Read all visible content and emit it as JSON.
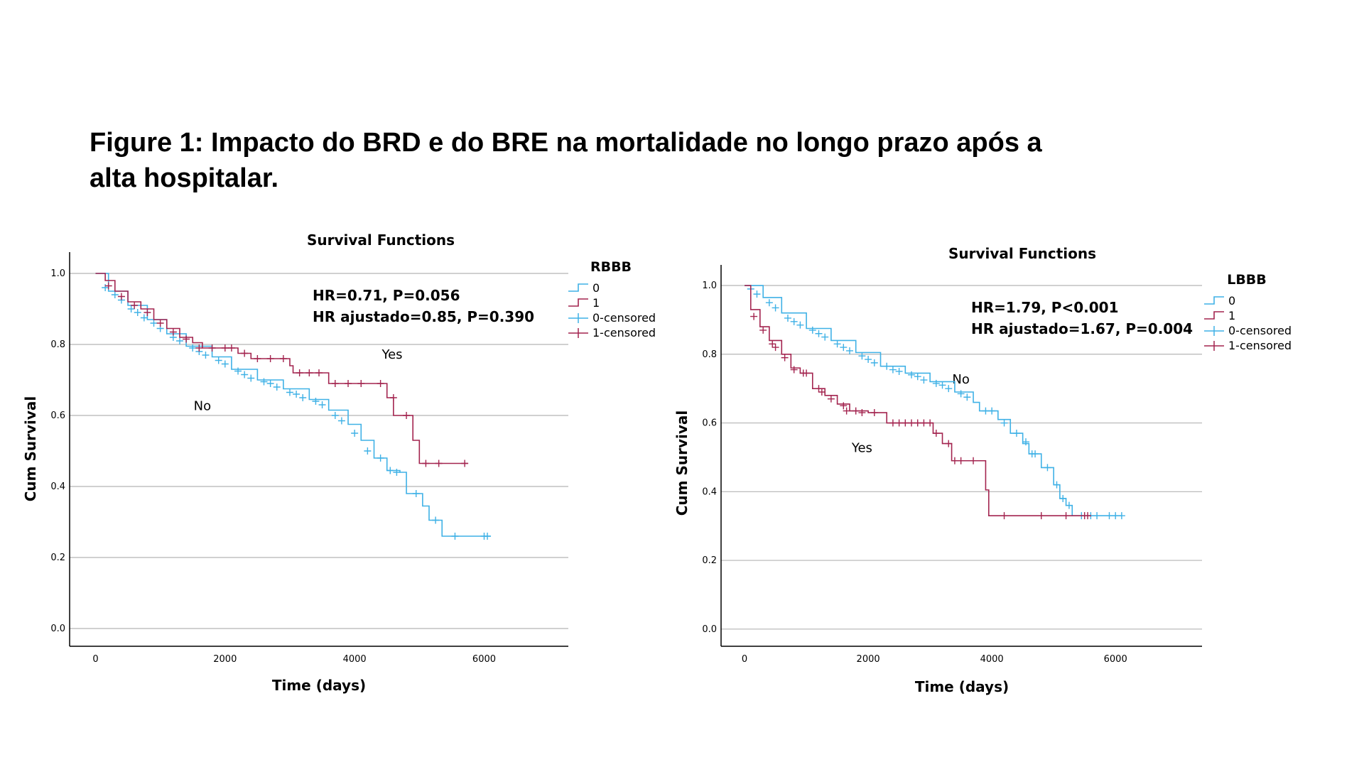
{
  "figure": {
    "title_line1": "Figure 1: Impacto do BRD e do BRE na mortalidade no longo prazo após a",
    "title_line2": "alta hospitalar."
  },
  "colors": {
    "group0": "#3fb1e6",
    "group1": "#a3244f",
    "grid": "#b4b4b4",
    "axis": "#000000"
  },
  "chart_data": [
    {
      "type": "line",
      "title": "Survival Functions",
      "xlabel": "Time (days)",
      "ylabel": "Cum Survival",
      "xlim": [
        -400,
        7300
      ],
      "ylim": [
        -0.05,
        1.06
      ],
      "x_ticks": [
        0,
        2000,
        4000,
        6000
      ],
      "x_tick_labels": [
        "0",
        "2000",
        "4000",
        "6000"
      ],
      "y_ticks": [
        0.0,
        0.2,
        0.4,
        0.6,
        0.8,
        1.0
      ],
      "y_tick_labels": [
        "0.0",
        "0.2",
        "0.4",
        "0.6",
        "0.8",
        "1.0"
      ],
      "grid": "horizontal",
      "legend": {
        "title": "RBBB",
        "position": "right",
        "entries": [
          "0",
          "1",
          "0-censored",
          "1-censored"
        ]
      },
      "annotations": [
        "HR=0.71, P=0.056",
        "HR ajustado=0.85, P=0.390"
      ],
      "group_labels": [
        {
          "text": "No",
          "x": 1650,
          "y": 0.615
        },
        {
          "text": "Yes",
          "x": 4580,
          "y": 0.76
        }
      ],
      "series": [
        {
          "name": "0",
          "points": [
            [
              0,
              1.0
            ],
            [
              200,
              0.95
            ],
            [
              500,
              0.91
            ],
            [
              800,
              0.87
            ],
            [
              1100,
              0.83
            ],
            [
              1400,
              0.795
            ],
            [
              1800,
              0.765
            ],
            [
              2100,
              0.73
            ],
            [
              2500,
              0.7
            ],
            [
              2900,
              0.675
            ],
            [
              3300,
              0.645
            ],
            [
              3600,
              0.615
            ],
            [
              3900,
              0.575
            ],
            [
              4100,
              0.53
            ],
            [
              4300,
              0.48
            ],
            [
              4500,
              0.445
            ],
            [
              4700,
              0.44
            ],
            [
              4800,
              0.38
            ],
            [
              5050,
              0.345
            ],
            [
              5150,
              0.305
            ],
            [
              5350,
              0.26
            ],
            [
              6100,
              0.26
            ]
          ],
          "censored": [
            [
              150,
              0.96
            ],
            [
              300,
              0.94
            ],
            [
              400,
              0.925
            ],
            [
              550,
              0.9
            ],
            [
              650,
              0.89
            ],
            [
              750,
              0.875
            ],
            [
              900,
              0.86
            ],
            [
              1000,
              0.845
            ],
            [
              1200,
              0.82
            ],
            [
              1300,
              0.81
            ],
            [
              1500,
              0.79
            ],
            [
              1600,
              0.78
            ],
            [
              1700,
              0.77
            ],
            [
              1900,
              0.755
            ],
            [
              2000,
              0.745
            ],
            [
              2200,
              0.725
            ],
            [
              2300,
              0.715
            ],
            [
              2400,
              0.705
            ],
            [
              2600,
              0.695
            ],
            [
              2700,
              0.69
            ],
            [
              2800,
              0.68
            ],
            [
              3000,
              0.665
            ],
            [
              3100,
              0.66
            ],
            [
              3200,
              0.65
            ],
            [
              3400,
              0.64
            ],
            [
              3500,
              0.63
            ],
            [
              3700,
              0.6
            ],
            [
              3800,
              0.585
            ],
            [
              4000,
              0.55
            ],
            [
              4200,
              0.5
            ],
            [
              4400,
              0.48
            ],
            [
              4550,
              0.445
            ],
            [
              4650,
              0.44
            ],
            [
              4950,
              0.38
            ],
            [
              5250,
              0.305
            ],
            [
              5550,
              0.26
            ],
            [
              6000,
              0.26
            ],
            [
              6050,
              0.26
            ]
          ]
        },
        {
          "name": "1",
          "points": [
            [
              0,
              1.0
            ],
            [
              150,
              0.98
            ],
            [
              300,
              0.95
            ],
            [
              500,
              0.92
            ],
            [
              700,
              0.9
            ],
            [
              900,
              0.87
            ],
            [
              1100,
              0.845
            ],
            [
              1300,
              0.82
            ],
            [
              1500,
              0.805
            ],
            [
              1650,
              0.79
            ],
            [
              2200,
              0.775
            ],
            [
              2400,
              0.76
            ],
            [
              3000,
              0.74
            ],
            [
              3050,
              0.72
            ],
            [
              3600,
              0.69
            ],
            [
              4500,
              0.65
            ],
            [
              4600,
              0.6
            ],
            [
              4900,
              0.53
            ],
            [
              5000,
              0.465
            ],
            [
              5750,
              0.465
            ]
          ],
          "censored": [
            [
              200,
              0.965
            ],
            [
              400,
              0.935
            ],
            [
              600,
              0.91
            ],
            [
              800,
              0.89
            ],
            [
              1000,
              0.86
            ],
            [
              1200,
              0.835
            ],
            [
              1400,
              0.815
            ],
            [
              1600,
              0.79
            ],
            [
              1800,
              0.79
            ],
            [
              2000,
              0.79
            ],
            [
              2100,
              0.79
            ],
            [
              2300,
              0.775
            ],
            [
              2500,
              0.76
            ],
            [
              2700,
              0.76
            ],
            [
              2900,
              0.76
            ],
            [
              3150,
              0.72
            ],
            [
              3300,
              0.72
            ],
            [
              3450,
              0.72
            ],
            [
              3700,
              0.69
            ],
            [
              3900,
              0.69
            ],
            [
              4100,
              0.69
            ],
            [
              4400,
              0.69
            ],
            [
              4600,
              0.65
            ],
            [
              4800,
              0.6
            ],
            [
              5100,
              0.465
            ],
            [
              5300,
              0.465
            ],
            [
              5700,
              0.465
            ]
          ]
        }
      ]
    },
    {
      "type": "line",
      "title": "Survival Functions",
      "xlabel": "Time (days)",
      "ylabel": "Cum Survival",
      "xlim": [
        -380,
        7400
      ],
      "ylim": [
        -0.05,
        1.06
      ],
      "x_ticks": [
        0,
        2000,
        4000,
        6000
      ],
      "x_tick_labels": [
        "0",
        "2000",
        "4000",
        "6000"
      ],
      "y_ticks": [
        0.0,
        0.2,
        0.4,
        0.6,
        0.8,
        1.0
      ],
      "y_tick_labels": [
        "0.0",
        "0.2",
        "0.4",
        "0.6",
        "0.8",
        "1.0"
      ],
      "grid": "horizontal",
      "legend": {
        "title": "LBBB",
        "position": "right",
        "entries": [
          "0",
          "1",
          "0-censored",
          "1-censored"
        ]
      },
      "annotations": [
        "HR=1.79, P<0.001",
        "HR ajustado=1.67, P=0.004"
      ],
      "group_labels": [
        {
          "text": "No",
          "x": 3500,
          "y": 0.715
        },
        {
          "text": "Yes",
          "x": 1900,
          "y": 0.515
        }
      ],
      "series": [
        {
          "name": "0",
          "points": [
            [
              0,
              1.0
            ],
            [
              300,
              0.965
            ],
            [
              600,
              0.92
            ],
            [
              1000,
              0.875
            ],
            [
              1400,
              0.84
            ],
            [
              1800,
              0.805
            ],
            [
              2200,
              0.765
            ],
            [
              2600,
              0.745
            ],
            [
              3000,
              0.72
            ],
            [
              3400,
              0.69
            ],
            [
              3700,
              0.66
            ],
            [
              3800,
              0.635
            ],
            [
              4100,
              0.61
            ],
            [
              4300,
              0.57
            ],
            [
              4500,
              0.54
            ],
            [
              4600,
              0.51
            ],
            [
              4800,
              0.47
            ],
            [
              5000,
              0.42
            ],
            [
              5100,
              0.38
            ],
            [
              5200,
              0.36
            ],
            [
              5300,
              0.33
            ],
            [
              6100,
              0.33
            ]
          ],
          "censored": [
            [
              100,
              0.99
            ],
            [
              200,
              0.975
            ],
            [
              400,
              0.95
            ],
            [
              500,
              0.935
            ],
            [
              700,
              0.905
            ],
            [
              800,
              0.895
            ],
            [
              900,
              0.885
            ],
            [
              1100,
              0.87
            ],
            [
              1200,
              0.86
            ],
            [
              1300,
              0.85
            ],
            [
              1500,
              0.83
            ],
            [
              1600,
              0.82
            ],
            [
              1700,
              0.81
            ],
            [
              1900,
              0.795
            ],
            [
              2000,
              0.785
            ],
            [
              2100,
              0.775
            ],
            [
              2300,
              0.765
            ],
            [
              2400,
              0.755
            ],
            [
              2500,
              0.75
            ],
            [
              2700,
              0.74
            ],
            [
              2800,
              0.735
            ],
            [
              2900,
              0.725
            ],
            [
              3100,
              0.715
            ],
            [
              3200,
              0.71
            ],
            [
              3300,
              0.7
            ],
            [
              3500,
              0.685
            ],
            [
              3600,
              0.675
            ],
            [
              3900,
              0.635
            ],
            [
              4000,
              0.635
            ],
            [
              4200,
              0.6
            ],
            [
              4400,
              0.57
            ],
            [
              4550,
              0.545
            ],
            [
              4650,
              0.51
            ],
            [
              4700,
              0.51
            ],
            [
              4900,
              0.47
            ],
            [
              5050,
              0.42
            ],
            [
              5150,
              0.38
            ],
            [
              5250,
              0.36
            ],
            [
              5450,
              0.33
            ],
            [
              5600,
              0.33
            ],
            [
              5700,
              0.33
            ],
            [
              5900,
              0.33
            ],
            [
              6000,
              0.33
            ],
            [
              6100,
              0.33
            ]
          ]
        },
        {
          "name": "1",
          "points": [
            [
              0,
              1.0
            ],
            [
              100,
              0.93
            ],
            [
              250,
              0.88
            ],
            [
              400,
              0.84
            ],
            [
              600,
              0.8
            ],
            [
              750,
              0.76
            ],
            [
              900,
              0.745
            ],
            [
              1100,
              0.7
            ],
            [
              1300,
              0.68
            ],
            [
              1500,
              0.655
            ],
            [
              1700,
              0.635
            ],
            [
              2000,
              0.63
            ],
            [
              2300,
              0.6
            ],
            [
              3050,
              0.57
            ],
            [
              3200,
              0.54
            ],
            [
              3350,
              0.49
            ],
            [
              3900,
              0.405
            ],
            [
              3950,
              0.33
            ],
            [
              5600,
              0.33
            ]
          ],
          "censored": [
            [
              150,
              0.91
            ],
            [
              300,
              0.87
            ],
            [
              450,
              0.83
            ],
            [
              500,
              0.82
            ],
            [
              650,
              0.79
            ],
            [
              800,
              0.755
            ],
            [
              950,
              0.745
            ],
            [
              1000,
              0.745
            ],
            [
              1200,
              0.7
            ],
            [
              1250,
              0.69
            ],
            [
              1400,
              0.67
            ],
            [
              1600,
              0.65
            ],
            [
              1650,
              0.635
            ],
            [
              1800,
              0.635
            ],
            [
              1900,
              0.63
            ],
            [
              2100,
              0.63
            ],
            [
              2400,
              0.6
            ],
            [
              2500,
              0.6
            ],
            [
              2600,
              0.6
            ],
            [
              2700,
              0.6
            ],
            [
              2800,
              0.6
            ],
            [
              2900,
              0.6
            ],
            [
              3000,
              0.6
            ],
            [
              3100,
              0.57
            ],
            [
              3300,
              0.54
            ],
            [
              3400,
              0.49
            ],
            [
              3500,
              0.49
            ],
            [
              3700,
              0.49
            ],
            [
              4200,
              0.33
            ],
            [
              4800,
              0.33
            ],
            [
              5200,
              0.33
            ],
            [
              5500,
              0.33
            ],
            [
              5550,
              0.33
            ]
          ]
        }
      ]
    }
  ]
}
